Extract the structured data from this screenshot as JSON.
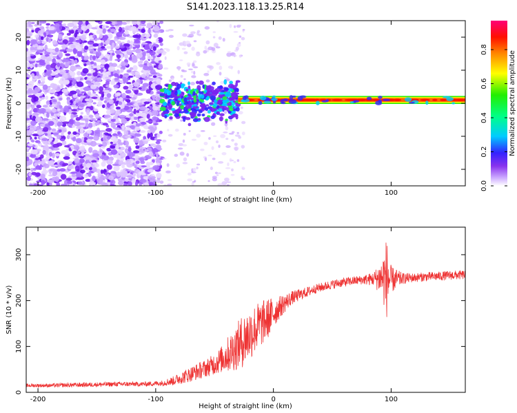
{
  "figure": {
    "title": "S141.2023.118.13.25.R14"
  },
  "chart_data": [
    {
      "type": "heatmap",
      "xlabel": "Height of straight line (km)",
      "ylabel": "Frequency (Hz)",
      "xlim": [
        -210,
        163
      ],
      "ylim": [
        -25,
        25
      ],
      "xticks": [
        -200,
        -100,
        0,
        100
      ],
      "yticks": [
        -20,
        -10,
        0,
        10,
        20
      ],
      "grid": false,
      "colorbar": {
        "label": "Normalized spectral amplitude",
        "range": [
          0,
          0.97
        ],
        "ticks": [
          0.0,
          0.2,
          0.4,
          0.6,
          0.8
        ]
      },
      "features": [
        {
          "x_range": [
            -210,
            -95
          ],
          "y_range": [
            -25,
            25
          ],
          "amplitude": 0.05
        },
        {
          "x_range": [
            -95,
            -30
          ],
          "y_range": [
            -8,
            6
          ],
          "amplitude": 0.2
        },
        {
          "x_range": [
            -30,
            163
          ],
          "y_range": [
            0,
            2
          ],
          "amplitude": 0.9
        }
      ]
    },
    {
      "type": "line",
      "xlabel": "Height of straight line (km)",
      "ylabel": "SNR (10 * v/v)",
      "xlim": [
        -210,
        163
      ],
      "ylim": [
        0,
        360
      ],
      "xticks": [
        -200,
        -100,
        0,
        100
      ],
      "yticks": [
        0,
        100,
        200,
        300
      ],
      "grid": false,
      "color": "#ee3333",
      "series": [
        {
          "x": [
            -210,
            -190,
            -170,
            -150,
            -130,
            -110,
            -95,
            -85,
            -75,
            -65,
            -55,
            -45,
            -35,
            -25,
            -15,
            -5,
            5,
            15,
            25,
            35,
            45,
            55,
            65,
            75,
            85,
            92,
            96,
            100,
            110,
            120,
            130,
            140,
            150,
            163
          ],
          "values": [
            15,
            15,
            16,
            17,
            18,
            18,
            20,
            25,
            35,
            45,
            55,
            70,
            90,
            115,
            140,
            160,
            185,
            205,
            215,
            225,
            232,
            238,
            242,
            245,
            247,
            250,
            248,
            245,
            248,
            250,
            252,
            253,
            255,
            256
          ],
          "noise": [
            4,
            4,
            5,
            5,
            5,
            5,
            6,
            10,
            15,
            18,
            20,
            28,
            45,
            60,
            55,
            45,
            25,
            15,
            12,
            10,
            10,
            10,
            10,
            10,
            15,
            40,
            90,
            30,
            12,
            10,
            10,
            10,
            10,
            10
          ]
        }
      ]
    }
  ]
}
